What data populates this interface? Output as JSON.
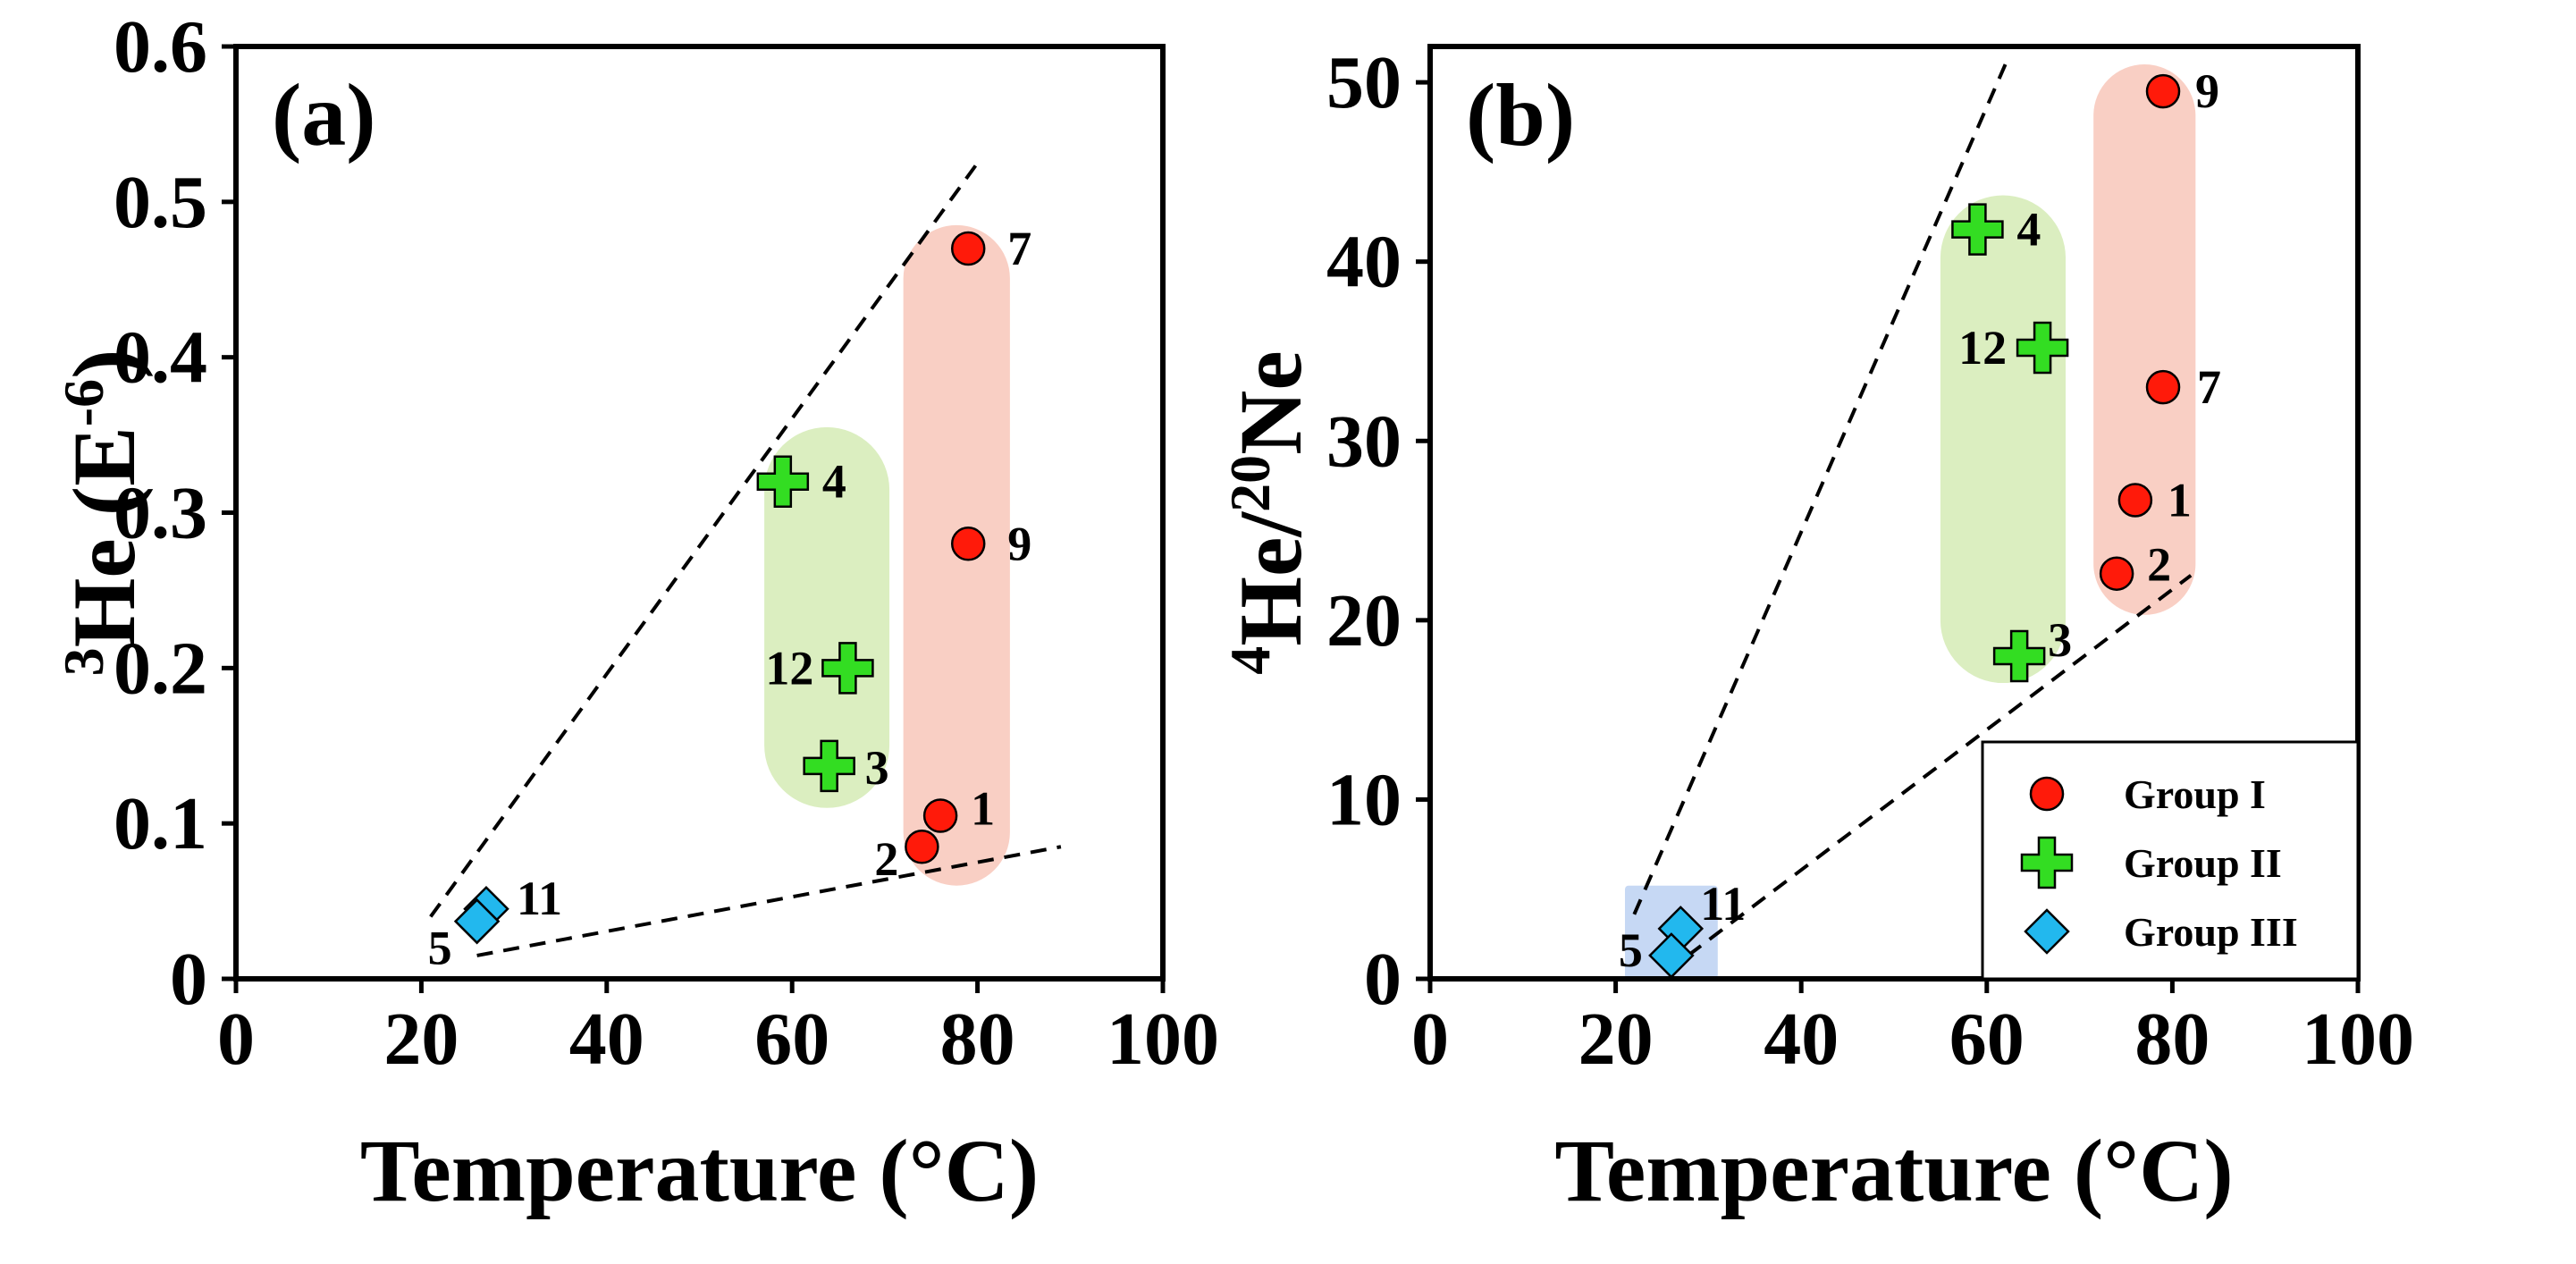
{
  "colors": {
    "group_i": "#ff1a0a",
    "group_ii": "#33dd22",
    "group_iii": "#22b8ee",
    "region_i": "#f9cfc4",
    "region_ii": "#dbeec0",
    "region_iii": "#c6d8f4"
  },
  "chart_data": [
    {
      "type": "scatter",
      "panel_label": "(a)",
      "xlabel": "Temperature (°C)",
      "ylabel_main": "He (E",
      "ylabel_sup1": "3",
      "ylabel_sup2": "-6",
      "ylabel_end": ")",
      "xlim": [
        0,
        100
      ],
      "ylim": [
        0,
        0.6
      ],
      "xticks": [
        0,
        20,
        40,
        60,
        80,
        100
      ],
      "xtick_labels": [
        "0",
        "20",
        "40",
        "60",
        "80",
        "100"
      ],
      "yticks": [
        0,
        0.1,
        0.2,
        0.3,
        0.4,
        0.5,
        0.6
      ],
      "ytick_labels": [
        "0",
        "0.1",
        "0.2",
        "0.3",
        "0.4",
        "0.5",
        "0.6"
      ],
      "series": [
        {
          "name": "Group I",
          "marker": "circle",
          "color_key": "group_i",
          "points": [
            {
              "label": "7",
              "x": 79,
              "y": 0.47
            },
            {
              "label": "9",
              "x": 79,
              "y": 0.28
            },
            {
              "label": "1",
              "x": 76,
              "y": 0.105
            },
            {
              "label": "2",
              "x": 74,
              "y": 0.085
            }
          ]
        },
        {
          "name": "Group II",
          "marker": "cross",
          "color_key": "group_ii",
          "points": [
            {
              "label": "4",
              "x": 59,
              "y": 0.32
            },
            {
              "label": "12",
              "x": 66,
              "y": 0.2
            },
            {
              "label": "3",
              "x": 64,
              "y": 0.137
            }
          ]
        },
        {
          "name": "Group III",
          "marker": "diamond",
          "color_key": "group_iii",
          "points": [
            {
              "label": "11",
              "x": 27,
              "y": 0.045
            },
            {
              "label": "5",
              "x": 26,
              "y": 0.037
            }
          ]
        }
      ],
      "regions": [
        {
          "group": "Group I",
          "color_key": "region_i",
          "x": [
            72,
            83.5
          ],
          "y": [
            0.06,
            0.485
          ]
        },
        {
          "group": "Group II",
          "color_key": "region_ii",
          "x": [
            57,
            70.5
          ],
          "y": [
            0.11,
            0.355
          ]
        }
      ],
      "trend_lines": [
        {
          "x": [
            21,
            80
          ],
          "y": [
            0.04,
            0.525
          ]
        },
        {
          "x": [
            26,
            89
          ],
          "y": [
            0.015,
            0.085
          ]
        }
      ]
    },
    {
      "type": "scatter",
      "panel_label": "(b)",
      "xlabel": "Temperature (°C)",
      "ylabel_sup1": "4",
      "ylabel_mid": "He/",
      "ylabel_sup2": "20",
      "ylabel_end": "Ne",
      "xlim": [
        0,
        100
      ],
      "ylim": [
        0,
        52
      ],
      "xticks": [
        0,
        20,
        40,
        60,
        80,
        100
      ],
      "xtick_labels": [
        "0",
        "20",
        "40",
        "60",
        "80",
        "100"
      ],
      "yticks": [
        0,
        10,
        20,
        30,
        40,
        50
      ],
      "ytick_labels": [
        "0",
        "10",
        "20",
        "30",
        "40",
        "50"
      ],
      "series": [
        {
          "name": "Group I",
          "marker": "circle",
          "color_key": "group_i",
          "points": [
            {
              "label": "9",
              "x": 79,
              "y": 49.5
            },
            {
              "label": "7",
              "x": 79,
              "y": 33
            },
            {
              "label": "1",
              "x": 76,
              "y": 26.7
            },
            {
              "label": "2",
              "x": 74,
              "y": 22.6
            }
          ]
        },
        {
          "name": "Group II",
          "marker": "cross",
          "color_key": "group_ii",
          "points": [
            {
              "label": "4",
              "x": 59,
              "y": 41.8
            },
            {
              "label": "12",
              "x": 66,
              "y": 35.2
            },
            {
              "label": "3",
              "x": 63.5,
              "y": 18
            }
          ]
        },
        {
          "name": "Group III",
          "marker": "diamond",
          "color_key": "group_iii",
          "points": [
            {
              "label": "11",
              "x": 27,
              "y": 2.8
            },
            {
              "label": "5",
              "x": 26,
              "y": 1.3
            }
          ]
        }
      ],
      "regions": [
        {
          "group": "Group I",
          "color_key": "region_i",
          "x": [
            71.5,
            82.5
          ],
          "y": [
            20.3,
            51
          ]
        },
        {
          "group": "Group II",
          "color_key": "region_ii",
          "x": [
            55,
            68.5
          ],
          "y": [
            16.5,
            43.7
          ]
        },
        {
          "group": "Group III",
          "color_key": "region_iii",
          "x": [
            21,
            31
          ],
          "y": [
            0,
            5.2
          ]
        }
      ],
      "trend_lines": [
        {
          "x": [
            22,
            62
          ],
          "y": [
            3.6,
            51
          ]
        },
        {
          "x": [
            25.5,
            82
          ],
          "y": [
            0.4,
            22.5
          ]
        }
      ],
      "legend": {
        "position": "bottom-right",
        "entries": [
          {
            "label": "Group I",
            "marker": "circle",
            "color_key": "group_i"
          },
          {
            "label": "Group II",
            "marker": "cross",
            "color_key": "group_ii"
          },
          {
            "label": "Group III",
            "marker": "diamond",
            "color_key": "group_iii"
          }
        ]
      }
    }
  ]
}
